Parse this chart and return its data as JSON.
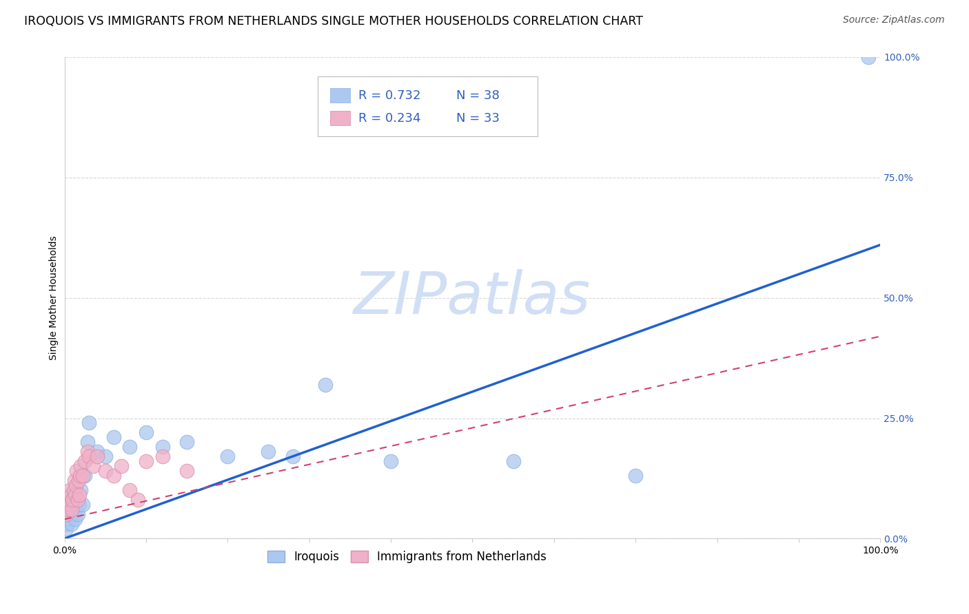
{
  "title": "IROQUOIS VS IMMIGRANTS FROM NETHERLANDS SINGLE MOTHER HOUSEHOLDS CORRELATION CHART",
  "source": "Source: ZipAtlas.com",
  "ylabel": "Single Mother Households",
  "legend_r1": "0.732",
  "legend_n1": "38",
  "legend_r2": "0.234",
  "legend_n2": "33",
  "legend_label1": "Iroquois",
  "legend_label2": "Immigrants from Netherlands",
  "iroquois_color": "#adc8f0",
  "iroquois_edge_color": "#8ab0e0",
  "iroquois_line_color": "#2060d0",
  "netherlands_color": "#f0b0c8",
  "netherlands_edge_color": "#d890a8",
  "netherlands_line_color": "#d04070",
  "text_blue_color": "#3060c0",
  "watermark_color": "#d0dff5",
  "xlim": [
    0,
    1
  ],
  "ylim": [
    0,
    1
  ],
  "ytick_labels": [
    "0.0%",
    "25.0%",
    "50.0%",
    "75.0%",
    "100.0%"
  ],
  "ytick_values": [
    0,
    0.25,
    0.5,
    0.75,
    1.0
  ],
  "xtick_values": [
    0,
    0.1,
    0.2,
    0.3,
    0.4,
    0.5,
    0.6,
    0.7,
    0.8,
    0.9,
    1.0
  ],
  "iroquois_x": [
    0.002,
    0.003,
    0.004,
    0.005,
    0.005,
    0.006,
    0.007,
    0.008,
    0.009,
    0.01,
    0.01,
    0.011,
    0.012,
    0.013,
    0.014,
    0.015,
    0.016,
    0.018,
    0.02,
    0.022,
    0.025,
    0.028,
    0.03,
    0.04,
    0.05,
    0.06,
    0.08,
    0.1,
    0.12,
    0.15,
    0.2,
    0.25,
    0.28,
    0.32,
    0.4,
    0.55,
    0.7,
    0.985
  ],
  "iroquois_y": [
    0.02,
    0.04,
    0.03,
    0.05,
    0.07,
    0.04,
    0.06,
    0.05,
    0.03,
    0.06,
    0.08,
    0.05,
    0.07,
    0.04,
    0.06,
    0.08,
    0.05,
    0.07,
    0.1,
    0.07,
    0.13,
    0.2,
    0.24,
    0.18,
    0.17,
    0.21,
    0.19,
    0.22,
    0.19,
    0.2,
    0.17,
    0.18,
    0.17,
    0.32,
    0.16,
    0.16,
    0.13,
    1.0
  ],
  "netherlands_x": [
    0.002,
    0.003,
    0.004,
    0.005,
    0.006,
    0.007,
    0.008,
    0.009,
    0.01,
    0.011,
    0.012,
    0.013,
    0.014,
    0.015,
    0.016,
    0.017,
    0.018,
    0.019,
    0.02,
    0.022,
    0.025,
    0.028,
    0.03,
    0.035,
    0.04,
    0.05,
    0.06,
    0.07,
    0.08,
    0.09,
    0.1,
    0.12,
    0.15
  ],
  "netherlands_y": [
    0.05,
    0.07,
    0.06,
    0.08,
    0.1,
    0.07,
    0.09,
    0.06,
    0.08,
    0.1,
    0.12,
    0.09,
    0.11,
    0.14,
    0.08,
    0.12,
    0.09,
    0.13,
    0.15,
    0.13,
    0.16,
    0.18,
    0.17,
    0.15,
    0.17,
    0.14,
    0.13,
    0.15,
    0.1,
    0.08,
    0.16,
    0.17,
    0.14
  ],
  "iroquois_trend": [
    0.0,
    0.61
  ],
  "netherlands_trend": [
    0.04,
    0.42
  ],
  "grid_color": "#d8d8d8",
  "background_color": "#ffffff",
  "title_fontsize": 12.5,
  "axis_label_fontsize": 10,
  "tick_label_fontsize": 10,
  "legend_fontsize": 13,
  "source_fontsize": 10
}
